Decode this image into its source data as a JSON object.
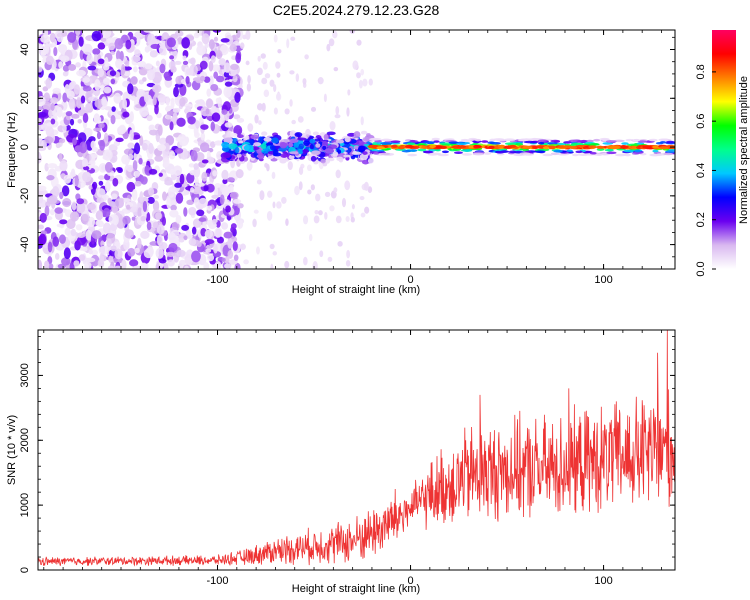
{
  "title": "C2E5.2024.279.12.23.G28",
  "chart_data": [
    {
      "type": "heatmap",
      "xlabel": "Height of straight line (km)",
      "ylabel": "Frequency (Hz)",
      "xlim": [
        -193,
        137
      ],
      "ylim": [
        -50,
        48
      ],
      "xticks": [
        -100,
        0,
        100
      ],
      "yticks": [
        -40,
        -20,
        0,
        20,
        40
      ],
      "colorbar": {
        "label": "Normalized spectral amplitude",
        "range": [
          0,
          0.97
        ],
        "ticks": [
          "0.0",
          "0.2",
          "0.4",
          "0.6",
          "0.8"
        ],
        "ticks_values": [
          0,
          0.2,
          0.4,
          0.6,
          0.8
        ],
        "colors": [
          "#ffffff",
          "#d9b8f0",
          "#6a00f0",
          "#0000ff",
          "#00c8ff",
          "#00ff8c",
          "#00ff00",
          "#ffff00",
          "#ff8000",
          "#ff0000",
          "#ff0060"
        ]
      },
      "regions": [
        {
          "x": [
            -193,
            -88
          ],
          "description": "broadband noise, amplitude ~0.05-0.15"
        },
        {
          "x": [
            -88,
            -20
          ],
          "freq_center": 0,
          "freq_halfwidth": 4,
          "amplitude": 0.3
        },
        {
          "x": [
            -20,
            137
          ],
          "freq_center": 0,
          "freq_halfwidth": 1.5,
          "amplitude": 0.9
        }
      ]
    },
    {
      "type": "line",
      "xlabel": "Height of straight line (km)",
      "ylabel": "SNR (10 * v/v)",
      "xlim": [
        -193,
        137
      ],
      "ylim": [
        0,
        3700
      ],
      "xticks": [
        -100,
        0,
        100
      ],
      "yticks": [
        0,
        1000,
        2000,
        3000
      ],
      "series": [
        {
          "color": "#ee3333",
          "envelope": {
            "x": [
              -193,
              -150,
              -100,
              -85,
              -70,
              -50,
              -30,
              -15,
              -5,
              0,
              5,
              15,
              30,
              50,
              70,
              90,
              110,
              125,
              137
            ],
            "y_mean": [
              130,
              140,
              150,
              200,
              300,
              370,
              450,
              650,
              850,
              950,
              1050,
              1250,
              1450,
              1550,
              1550,
              1650,
              1750,
              1800,
              1850
            ],
            "y_spread": [
              80,
              80,
              90,
              150,
              250,
              320,
              420,
              500,
              550,
              300,
              500,
              700,
              900,
              900,
              950,
              950,
              1000,
              1100,
              1100
            ]
          },
          "peaks": [
            {
              "x": 133,
              "y": 3700
            },
            {
              "x": 128,
              "y": 3350
            },
            {
              "x": 36,
              "y": 2700
            },
            {
              "x": 82,
              "y": 2800
            }
          ]
        }
      ]
    }
  ]
}
